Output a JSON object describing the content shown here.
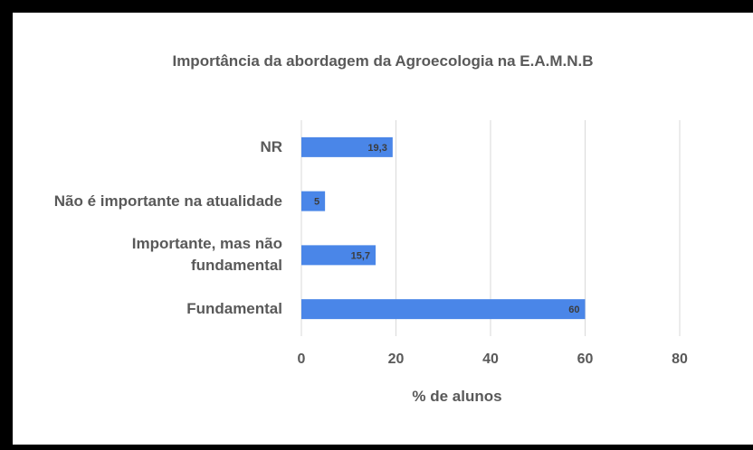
{
  "chart_data": {
    "type": "bar",
    "orientation": "horizontal",
    "title": "Importância da abordagem da Agroecologia na E.A.M.N.B",
    "categories": [
      "NR",
      "Não é importante na atualidade",
      "Importante, mas não fundamental",
      "Fundamental"
    ],
    "values": [
      19.3,
      5,
      15.7,
      60
    ],
    "value_labels": [
      "19,3",
      "5",
      "15,7",
      "60"
    ],
    "color": "#4a86e8",
    "x_label": "% de alunos",
    "xlim": [
      0,
      80
    ],
    "xticks": [
      0,
      20,
      40,
      60,
      80
    ],
    "grid": true
  }
}
